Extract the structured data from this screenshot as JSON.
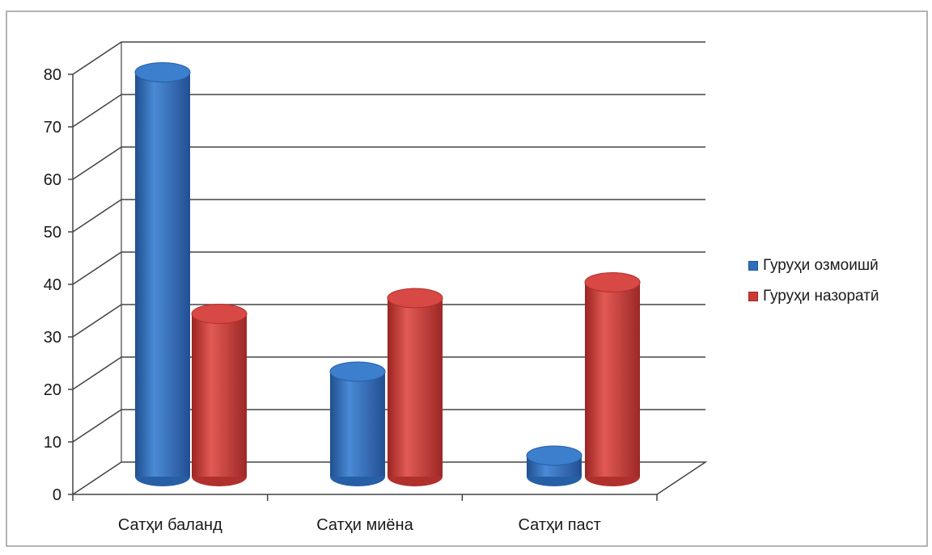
{
  "chart_data": {
    "type": "bar",
    "style": "3d-cylinder",
    "categories": [
      "Сатҳи баланд",
      "Сатҳи миёна",
      "Сатҳи паст"
    ],
    "series": [
      {
        "name": "Гуруҳи озмоишӣ",
        "values": [
          77,
          20,
          4
        ],
        "color": "#2e6fbd"
      },
      {
        "name": "Гуруҳи назоратӣ",
        "values": [
          31,
          34,
          37
        ],
        "color": "#cd3a36"
      }
    ],
    "title": "",
    "xlabel": "",
    "ylabel": "",
    "ylim": [
      0,
      80
    ],
    "yticks": [
      "0",
      "10",
      "20",
      "30",
      "40",
      "50",
      "60",
      "70",
      "80"
    ],
    "grid": true,
    "legend_position": "right"
  }
}
